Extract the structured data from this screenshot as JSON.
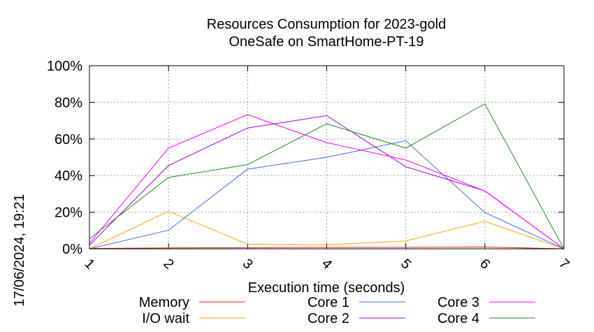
{
  "chart_data": {
    "type": "line",
    "title": "Resources Consumption for 2023-gold",
    "subtitle": "OneSafe on SmartHome-PT-19",
    "xlabel": "Execution time (seconds)",
    "ylabel": "",
    "side_label": "17/06/2024, 19:21",
    "x": [
      1,
      2,
      3,
      4,
      5,
      6,
      7
    ],
    "xlim": [
      1,
      7
    ],
    "ylim": [
      0,
      100
    ],
    "y_ticks": [
      "0%",
      "20%",
      "40%",
      "60%",
      "80%",
      "100%"
    ],
    "x_ticks": [
      "1",
      "2",
      "3",
      "4",
      "5",
      "6",
      "7"
    ],
    "grid": true,
    "legend_position": "bottom",
    "series": [
      {
        "name": "Memory",
        "color": "#e41a1c",
        "values": [
          0.2,
          0.5,
          0.6,
          0.8,
          0.8,
          1.0,
          0
        ]
      },
      {
        "name": "I/O wait",
        "color": "#ffa500",
        "values": [
          0,
          20.5,
          2.5,
          2.2,
          4.3,
          15.0,
          0
        ]
      },
      {
        "name": "Core 1",
        "color": "#4169e1",
        "values": [
          0,
          10.2,
          43.5,
          50.0,
          59.0,
          19.8,
          0
        ]
      },
      {
        "name": "Core 2",
        "color": "#9400d3",
        "values": [
          2.0,
          45.5,
          66.0,
          72.7,
          44.8,
          31.7,
          0
        ]
      },
      {
        "name": "Core 3",
        "color": "#ff00ff",
        "values": [
          3.0,
          55.0,
          73.3,
          58.0,
          48.5,
          31.6,
          0
        ]
      },
      {
        "name": "Core 4",
        "color": "#228b22",
        "values": [
          5.5,
          39.0,
          46.0,
          68.3,
          55.0,
          79.2,
          0
        ]
      }
    ]
  }
}
